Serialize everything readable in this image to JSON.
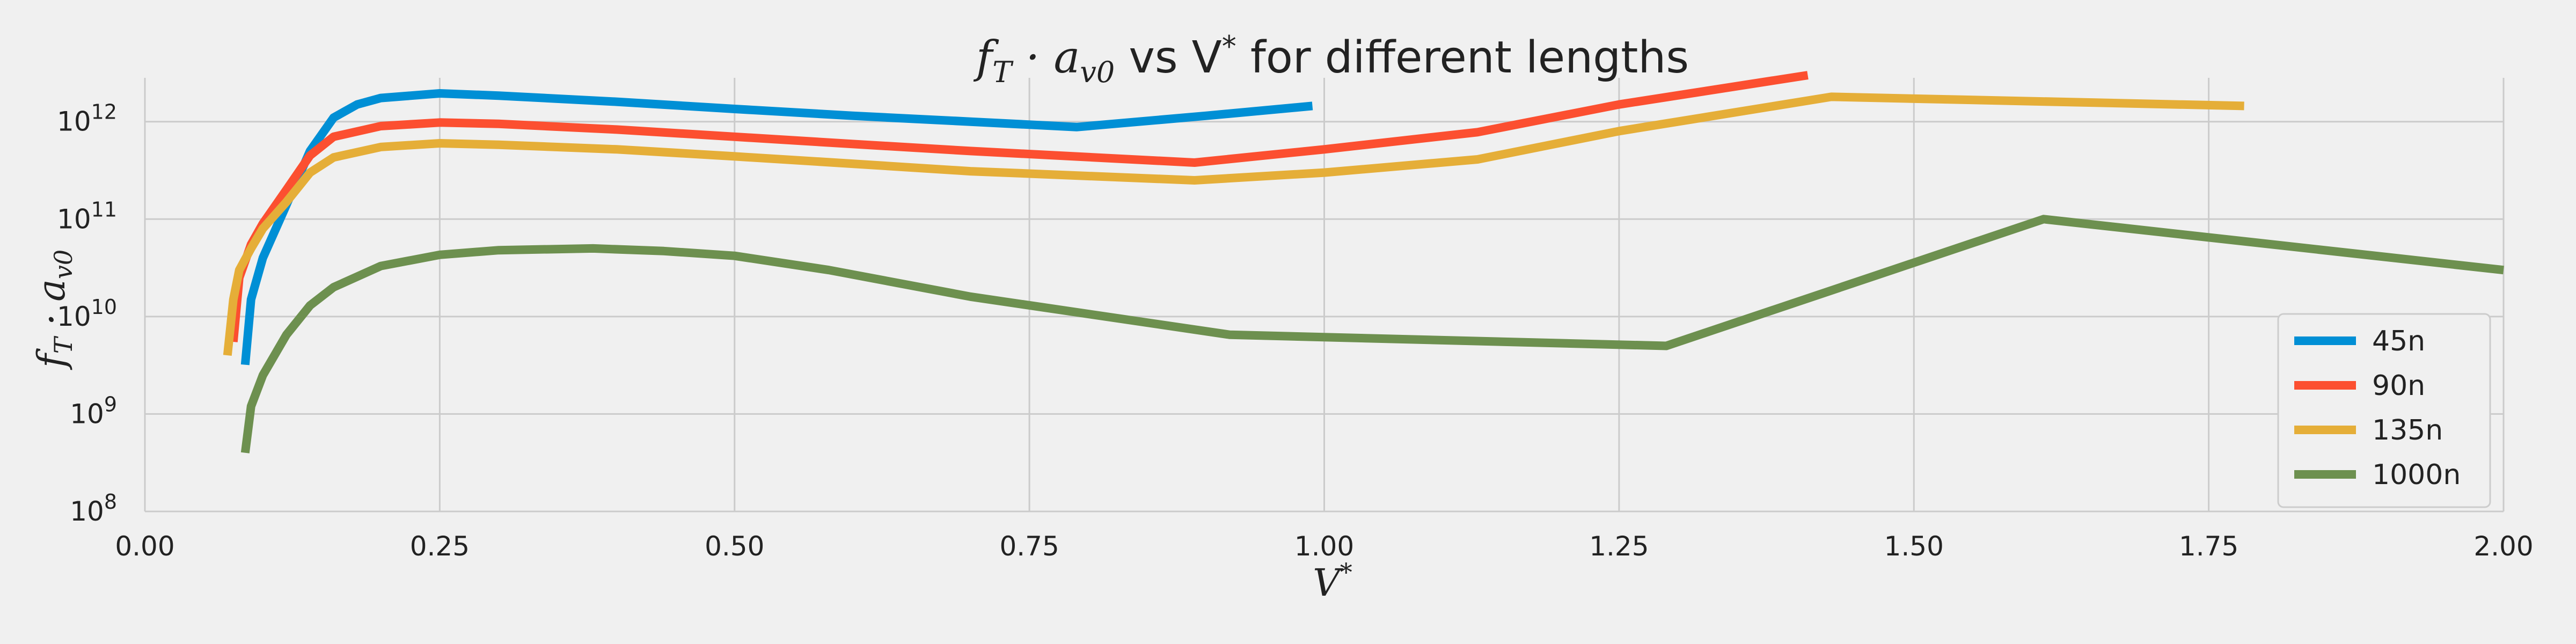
{
  "chart_data": {
    "type": "line",
    "title": {
      "pre": "f",
      "pre_sub": "T",
      "mid": " · a",
      "mid_sub": "v0",
      "mid2": " vs V",
      "mid2_sup": "*",
      "post": " for different lengths"
    },
    "xlabel": {
      "base": "V",
      "sup": "*"
    },
    "ylabel": {
      "base1": "f",
      "sub1": "T",
      "mid": " · a",
      "sub2": "v0"
    },
    "y_scale": "log",
    "xlim": [
      0,
      2
    ],
    "ylim_exp": [
      8,
      12.45
    ],
    "x_ticks": [
      0,
      0.25,
      0.5,
      0.75,
      1.0,
      1.25,
      1.5,
      1.75,
      2.0
    ],
    "x_tick_labels": [
      "0.00",
      "0.25",
      "0.50",
      "0.75",
      "1.00",
      "1.25",
      "1.50",
      "1.75",
      "2.00"
    ],
    "y_ticks": [
      {
        "base": "10",
        "exp": "8",
        "value": 100000000.0
      },
      {
        "base": "10",
        "exp": "9",
        "value": 1000000000.0
      },
      {
        "base": "10",
        "exp": "10",
        "value": 10000000000.0
      },
      {
        "base": "10",
        "exp": "11",
        "value": 100000000000.0
      },
      {
        "base": "10",
        "exp": "12",
        "value": 1000000000000.0
      }
    ],
    "grid": true,
    "legend_position": "bottom-right",
    "series": [
      {
        "name": "45n",
        "color": "#008fd5",
        "x": [
          0.085,
          0.09,
          0.1,
          0.12,
          0.14,
          0.16,
          0.18,
          0.2,
          0.25,
          0.3,
          0.4,
          0.5,
          0.6,
          0.7,
          0.79,
          0.9,
          0.99
        ],
        "y": [
          3200000000.0,
          15000000000.0,
          40000000000.0,
          140000000000.0,
          500000000000.0,
          1100000000000.0,
          1500000000000.0,
          1750000000000.0,
          1950000000000.0,
          1850000000000.0,
          1600000000000.0,
          1350000000000.0,
          1150000000000.0,
          1000000000000.0,
          880000000000.0,
          1150000000000.0,
          1450000000000.0
        ]
      },
      {
        "name": "90n",
        "color": "#fc4f30",
        "x": [
          0.075,
          0.08,
          0.09,
          0.1,
          0.12,
          0.14,
          0.16,
          0.2,
          0.25,
          0.3,
          0.4,
          0.5,
          0.6,
          0.7,
          0.89,
          1.0,
          1.13,
          1.25,
          1.41
        ],
        "y": [
          5500000000.0,
          25000000000.0,
          55000000000.0,
          90000000000.0,
          200000000000.0,
          450000000000.0,
          700000000000.0,
          900000000000.0,
          980000000000.0,
          950000000000.0,
          830000000000.0,
          700000000000.0,
          590000000000.0,
          500000000000.0,
          380000000000.0,
          520000000000.0,
          780000000000.0,
          1500000000000.0,
          3000000000000.0
        ]
      },
      {
        "name": "135n",
        "color": "#e5ae38",
        "x": [
          0.07,
          0.075,
          0.08,
          0.09,
          0.1,
          0.12,
          0.14,
          0.16,
          0.2,
          0.25,
          0.3,
          0.4,
          0.5,
          0.6,
          0.7,
          0.89,
          1.0,
          1.13,
          1.25,
          1.43,
          1.78
        ],
        "y": [
          4000000000.0,
          15000000000.0,
          30000000000.0,
          50000000000.0,
          80000000000.0,
          150000000000.0,
          300000000000.0,
          430000000000.0,
          550000000000.0,
          600000000000.0,
          580000000000.0,
          520000000000.0,
          440000000000.0,
          370000000000.0,
          310000000000.0,
          250000000000.0,
          300000000000.0,
          410000000000.0,
          800000000000.0,
          1800000000000.0,
          1450000000000.0
        ]
      },
      {
        "name": "1000n",
        "color": "#6d904f",
        "x": [
          0.085,
          0.09,
          0.1,
          0.12,
          0.14,
          0.16,
          0.2,
          0.25,
          0.3,
          0.38,
          0.44,
          0.5,
          0.58,
          0.7,
          0.92,
          1.29,
          1.61,
          2.0
        ],
        "y": [
          400000000.0,
          1200000000.0,
          2500000000.0,
          6500000000.0,
          13000000000.0,
          20000000000.0,
          33000000000.0,
          43000000000.0,
          48000000000.0,
          50000000000.0,
          47000000000.0,
          42000000000.0,
          30000000000.0,
          16000000000.0,
          6500000000.0,
          5000000000.0,
          100000000000.0,
          30000000000.0
        ]
      }
    ]
  }
}
